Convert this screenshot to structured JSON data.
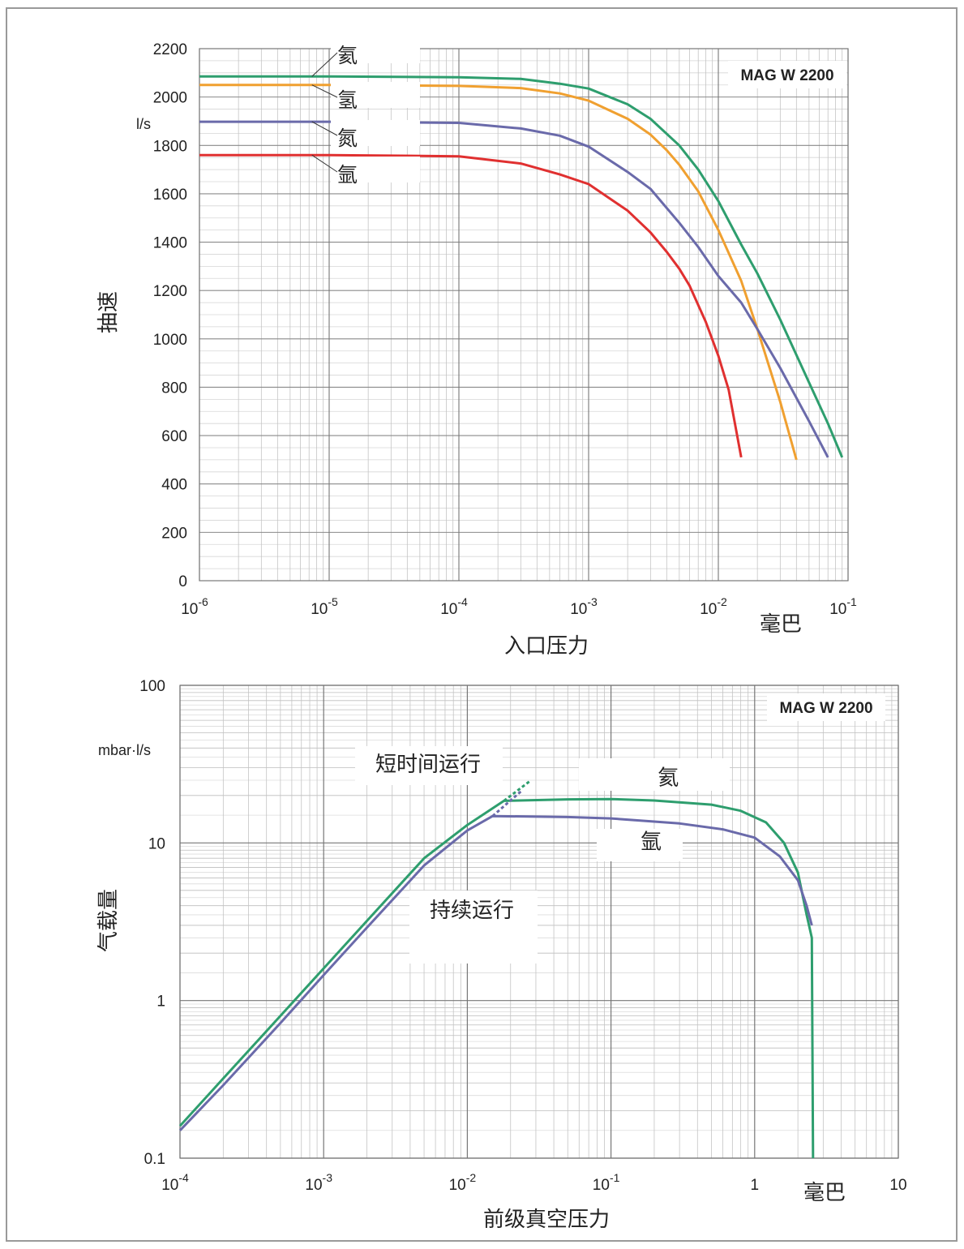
{
  "chart_data": [
    {
      "type": "line",
      "title": "MAG W 2200",
      "xlabel": "入口压力",
      "xunit": "毫巴",
      "ylabel": "抽速",
      "yunit": "l/s",
      "xscale": "log",
      "xlim": [
        1e-06,
        0.1
      ],
      "ylim": [
        0,
        2200
      ],
      "grid": true,
      "x_ticks": [
        {
          "value": 1e-06,
          "base": "10",
          "exp": "-6"
        },
        {
          "value": 1e-05,
          "base": "10",
          "exp": "-5"
        },
        {
          "value": 0.0001,
          "base": "10",
          "exp": "-4"
        },
        {
          "value": 0.001,
          "base": "10",
          "exp": "-3"
        },
        {
          "value": 0.01,
          "base": "10",
          "exp": "-2"
        },
        {
          "value": 0.1,
          "base": "10",
          "exp": "-1"
        }
      ],
      "y_ticks": [
        {
          "value": 0,
          "label": "0"
        },
        {
          "value": 200,
          "label": "200"
        },
        {
          "value": 400,
          "label": "400"
        },
        {
          "value": 600,
          "label": "600"
        },
        {
          "value": 800,
          "label": "800"
        },
        {
          "value": 1000,
          "label": "1000"
        },
        {
          "value": 1200,
          "label": "1200"
        },
        {
          "value": 1400,
          "label": "1400"
        },
        {
          "value": 1600,
          "label": "1600"
        },
        {
          "value": 1800,
          "label": "1800"
        },
        {
          "value": 2000,
          "label": "2000"
        },
        {
          "value": 2200,
          "label": "2200"
        }
      ],
      "series": [
        {
          "name": "氦",
          "color": "#2e9e6e",
          "label_pos": [
            7.8e-06,
            2085
          ],
          "points": [
            [
              1e-06,
              2085
            ],
            [
              1e-05,
              2085
            ],
            [
              0.0001,
              2082
            ],
            [
              0.0003,
              2075
            ],
            [
              0.0006,
              2055
            ],
            [
              0.001,
              2035
            ],
            [
              0.002,
              1970
            ],
            [
              0.003,
              1910
            ],
            [
              0.005,
              1800
            ],
            [
              0.007,
              1700
            ],
            [
              0.01,
              1570
            ],
            [
              0.015,
              1390
            ],
            [
              0.02,
              1270
            ],
            [
              0.03,
              1080
            ],
            [
              0.05,
              820
            ],
            [
              0.07,
              650
            ],
            [
              0.09,
              510
            ]
          ]
        },
        {
          "name": "氢",
          "color": "#f0a030",
          "label_pos": [
            7.8e-06,
            2050
          ],
          "points": [
            [
              1e-06,
              2050
            ],
            [
              1e-05,
              2050
            ],
            [
              0.0001,
              2046
            ],
            [
              0.0003,
              2037
            ],
            [
              0.0006,
              2015
            ],
            [
              0.001,
              1985
            ],
            [
              0.002,
              1910
            ],
            [
              0.003,
              1845
            ],
            [
              0.004,
              1780
            ],
            [
              0.005,
              1720
            ],
            [
              0.007,
              1610
            ],
            [
              0.01,
              1450
            ],
            [
              0.015,
              1240
            ],
            [
              0.02,
              1040
            ],
            [
              0.03,
              740
            ],
            [
              0.04,
              500
            ]
          ]
        },
        {
          "name": "氮",
          "color": "#6a6aaa",
          "label_pos": [
            7.8e-06,
            1898
          ],
          "points": [
            [
              1e-06,
              1898
            ],
            [
              1e-05,
              1898
            ],
            [
              0.0001,
              1893
            ],
            [
              0.0003,
              1870
            ],
            [
              0.0006,
              1840
            ],
            [
              0.001,
              1795
            ],
            [
              0.002,
              1690
            ],
            [
              0.003,
              1620
            ],
            [
              0.005,
              1480
            ],
            [
              0.007,
              1380
            ],
            [
              0.01,
              1260
            ],
            [
              0.015,
              1150
            ],
            [
              0.02,
              1040
            ],
            [
              0.03,
              880
            ],
            [
              0.05,
              660
            ],
            [
              0.07,
              510
            ]
          ]
        },
        {
          "name": "氩",
          "color": "#e03030",
          "label_pos": [
            7.8e-06,
            1760
          ],
          "points": [
            [
              1e-06,
              1760
            ],
            [
              1e-05,
              1760
            ],
            [
              0.0001,
              1755
            ],
            [
              0.0003,
              1725
            ],
            [
              0.0006,
              1680
            ],
            [
              0.001,
              1640
            ],
            [
              0.002,
              1530
            ],
            [
              0.003,
              1440
            ],
            [
              0.004,
              1360
            ],
            [
              0.005,
              1290
            ],
            [
              0.006,
              1220
            ],
            [
              0.007,
              1140
            ],
            [
              0.008,
              1070
            ],
            [
              0.01,
              930
            ],
            [
              0.012,
              790
            ],
            [
              0.015,
              510
            ]
          ]
        }
      ]
    },
    {
      "type": "line",
      "title": "MAG W 2200",
      "xlabel": "前级真空压力",
      "xunit": "毫巴",
      "ylabel": "气载量",
      "yunit": "mbar·l/s",
      "xscale": "log",
      "yscale": "log",
      "xlim": [
        0.0001,
        10
      ],
      "ylim": [
        0.1,
        100
      ],
      "grid": true,
      "x_ticks": [
        {
          "value": 0.0001,
          "base": "10",
          "exp": "-4"
        },
        {
          "value": 0.001,
          "base": "10",
          "exp": "-3"
        },
        {
          "value": 0.01,
          "base": "10",
          "exp": "-2"
        },
        {
          "value": 0.1,
          "base": "10",
          "exp": "-1"
        },
        {
          "value": 1,
          "base": "1",
          "exp": ""
        },
        {
          "value": 10,
          "base": "10",
          "exp": ""
        }
      ],
      "y_ticks": [
        {
          "value": 0.1,
          "label": "0.1"
        },
        {
          "value": 1,
          "label": "1"
        },
        {
          "value": 10,
          "label": "10"
        },
        {
          "value": 100,
          "label": "100"
        }
      ],
      "annotations": [
        {
          "text": "短时间运行",
          "at": [
            0.0017,
            30
          ]
        },
        {
          "text": "持续运行",
          "at": [
            0.0032,
            4.6
          ]
        }
      ],
      "series": [
        {
          "name": "氦",
          "color": "#2e9e6e",
          "label_pos": [
            0.25,
            26
          ],
          "points": [
            [
              0.0001,
              0.16
            ],
            [
              0.0002,
              0.32
            ],
            [
              0.0005,
              0.8
            ],
            [
              0.001,
              1.6
            ],
            [
              0.002,
              3.2
            ],
            [
              0.005,
              8
            ],
            [
              0.01,
              13
            ],
            [
              0.018,
              18.5
            ],
            [
              0.05,
              18.9
            ],
            [
              0.1,
              19
            ],
            [
              0.2,
              18.6
            ],
            [
              0.5,
              17.5
            ],
            [
              0.8,
              16
            ],
            [
              1.2,
              13.5
            ],
            [
              1.6,
              10
            ],
            [
              2,
              6.5
            ],
            [
              2.3,
              3.5
            ],
            [
              2.5,
              2.5
            ],
            [
              2.55,
              0.1
            ]
          ],
          "extension": [
            [
              0.018,
              18.5
            ],
            [
              0.027,
              24.5
            ]
          ]
        },
        {
          "name": "氩",
          "color": "#6a6aaa",
          "label_pos": [
            0.19,
            10.2
          ],
          "points": [
            [
              0.0001,
              0.15
            ],
            [
              0.0002,
              0.29
            ],
            [
              0.0005,
              0.72
            ],
            [
              0.001,
              1.45
            ],
            [
              0.002,
              2.9
            ],
            [
              0.005,
              7.2
            ],
            [
              0.01,
              12
            ],
            [
              0.015,
              14.8
            ],
            [
              0.05,
              14.6
            ],
            [
              0.1,
              14.3
            ],
            [
              0.3,
              13.3
            ],
            [
              0.6,
              12.2
            ],
            [
              1,
              10.8
            ],
            [
              1.5,
              8.2
            ],
            [
              2,
              5.8
            ],
            [
              2.3,
              4
            ],
            [
              2.5,
              3
            ]
          ],
          "extension": [
            [
              0.015,
              14.8
            ],
            [
              0.024,
              21.5
            ]
          ]
        }
      ]
    }
  ]
}
